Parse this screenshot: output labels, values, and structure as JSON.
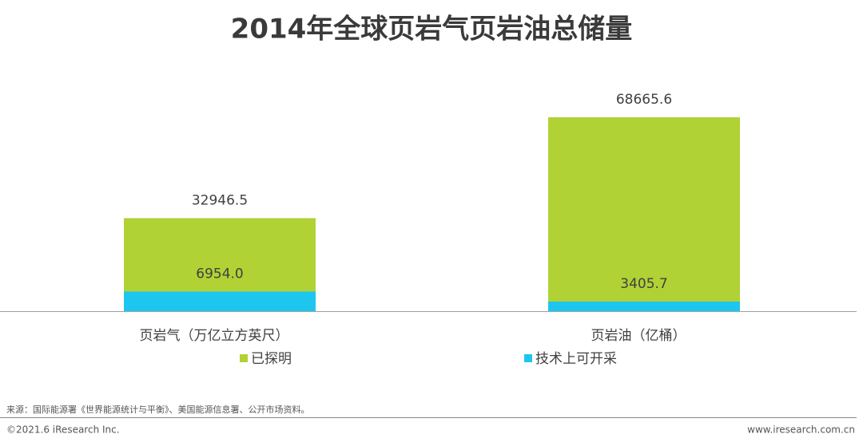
{
  "chart_data": {
    "type": "bar",
    "title": "2014年全球页岩气页岩油总储量",
    "categories": [
      "页岩气（万亿立方英尺）",
      "页岩油（亿桶）"
    ],
    "series": [
      {
        "name": "已探明",
        "color": "#b0d235",
        "values": [
          32946.5,
          68665.6
        ]
      },
      {
        "name": "技术上可开采",
        "color": "#1dc6ef",
        "values": [
          6954.0,
          3405.7
        ],
        "value_labels": [
          "6954.0",
          "3405.7"
        ]
      }
    ]
  },
  "source": "来源：国际能源署《世界能源统计与平衡》、美国能源信息署、公开市场资料。",
  "copyright": "©2021.6 iResearch Inc.",
  "website": "www.iresearch.com.cn"
}
